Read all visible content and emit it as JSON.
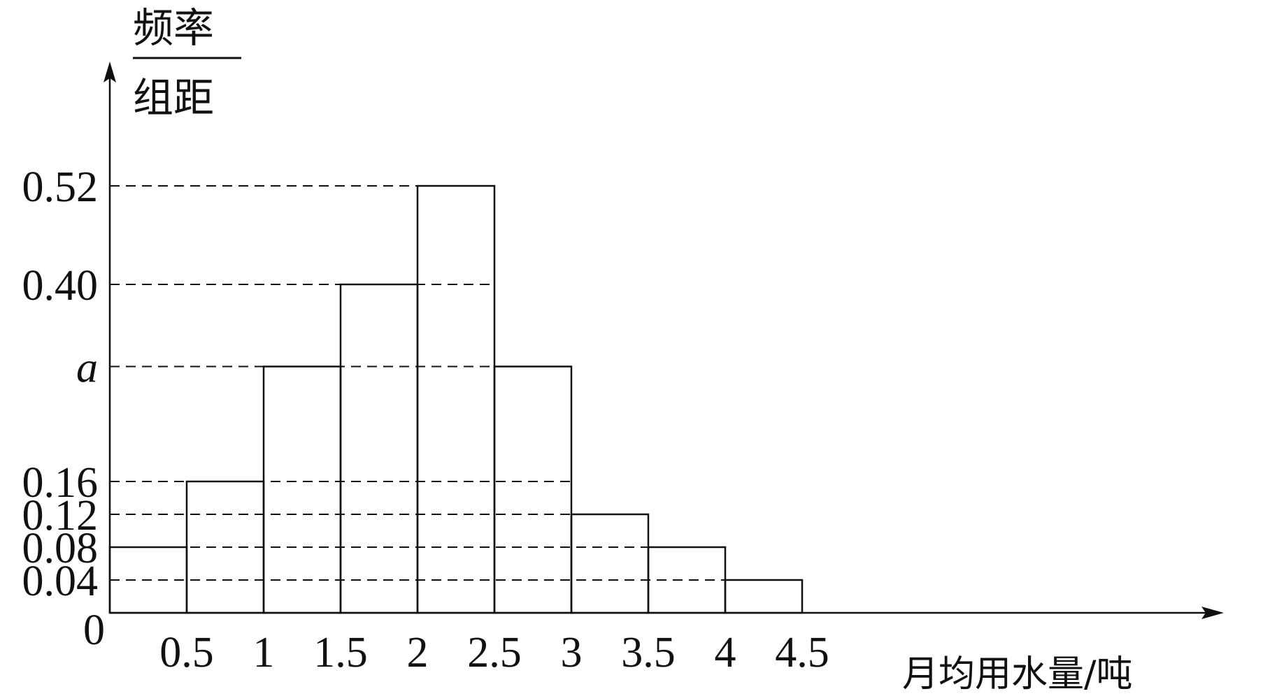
{
  "chart_data": {
    "type": "bar",
    "title": "",
    "bin_edges": [
      0,
      0.5,
      1,
      1.5,
      2,
      2.5,
      3,
      3.5,
      4,
      4.5
    ],
    "values": [
      0.08,
      0.16,
      0.3,
      0.4,
      0.52,
      0.3,
      0.12,
      0.08,
      0.04
    ],
    "x_tick_labels": [
      "0",
      "0.5",
      "1",
      "1.5",
      "2",
      "2.5",
      "3",
      "3.5",
      "4",
      "4.5"
    ],
    "y_ticks": [
      {
        "value": 0.52,
        "label": "0.52"
      },
      {
        "value": 0.4,
        "label": "0.40"
      },
      {
        "value": 0.3,
        "label": "a"
      },
      {
        "value": 0.16,
        "label": "0.16"
      },
      {
        "value": 0.12,
        "label": "0.12"
      },
      {
        "value": 0.08,
        "label": "0.08"
      },
      {
        "value": 0.04,
        "label": "0.04"
      }
    ],
    "ylabel_top": "频率",
    "ylabel_bottom": "组距",
    "xlabel": "月均用水量/吨",
    "xlim": [
      0,
      7.0
    ],
    "ylim": [
      0,
      0.69
    ]
  }
}
